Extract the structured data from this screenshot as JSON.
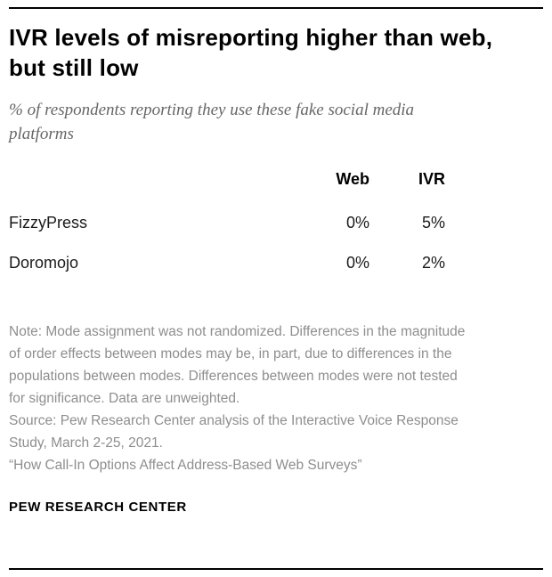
{
  "title": "IVR levels of misreporting higher than web, but still low",
  "subtitle": "% of respondents reporting they use these fake social media platforms",
  "chart_data": {
    "type": "table",
    "title": "IVR levels of misreporting higher than web, but still low",
    "subtitle": "% of respondents reporting they use these fake social media platforms",
    "columns": [
      "Web",
      "IVR"
    ],
    "rows": [
      {
        "label": "FizzyPress",
        "values": [
          "0%",
          "5%"
        ]
      },
      {
        "label": "Doromojo",
        "values": [
          "0%",
          "2%"
        ]
      }
    ]
  },
  "notes": {
    "note": "Note: Mode assignment was not randomized. Differences in the magnitude of order effects between modes may be, in part, due to differences in the populations between modes. Differences between modes were not tested for significance. Data are unweighted.",
    "source": "Source: Pew Research Center analysis of the Interactive Voice Response Study, March 2-25, 2021.",
    "report": "“How Call-In Options Affect Address-Based Web Surveys”"
  },
  "footer": {
    "brand": "PEW RESEARCH CENTER"
  },
  "colors": {
    "title": "#000000",
    "subtitle": "#666666",
    "note": "#8e8e8e",
    "rule": "#000000"
  }
}
